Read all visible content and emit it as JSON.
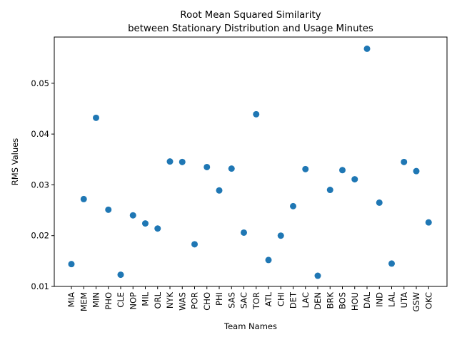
{
  "chart_data": {
    "type": "scatter",
    "title_lines": [
      "Root Mean Squared Similarity",
      "between Stationary Distribution and Usage Minutes"
    ],
    "xlabel": "Team Names",
    "ylabel": "RMS Values",
    "categories": [
      "MIA",
      "MEM",
      "MIN",
      "PHO",
      "CLE",
      "NOP",
      "MIL",
      "ORL",
      "NYK",
      "WAS",
      "POR",
      "CHO",
      "PHI",
      "SAS",
      "SAC",
      "TOR",
      "ATL",
      "CHI",
      "DET",
      "LAC",
      "DEN",
      "BRK",
      "BOS",
      "HOU",
      "DAL",
      "IND",
      "LAL",
      "UTA",
      "GSW",
      "OKC"
    ],
    "values": [
      0.0144,
      0.0272,
      0.0432,
      0.0251,
      0.0123,
      0.024,
      0.0224,
      0.0214,
      0.0346,
      0.0345,
      0.0183,
      0.0335,
      0.0289,
      0.0332,
      0.0206,
      0.0439,
      0.0152,
      0.02,
      0.0258,
      0.0331,
      0.0121,
      0.029,
      0.0329,
      0.0311,
      0.0568,
      0.0265,
      0.0145,
      0.0345,
      0.0327,
      0.0226
    ],
    "ylim": [
      0.01,
      0.0591
    ],
    "yticks": [
      0.01,
      0.02,
      0.03,
      0.04,
      0.05
    ],
    "ytick_labels": [
      "0.01",
      "0.02",
      "0.03",
      "0.04",
      "0.05"
    ],
    "grid": false,
    "legend": "none",
    "marker_color": "#1f77b4"
  }
}
